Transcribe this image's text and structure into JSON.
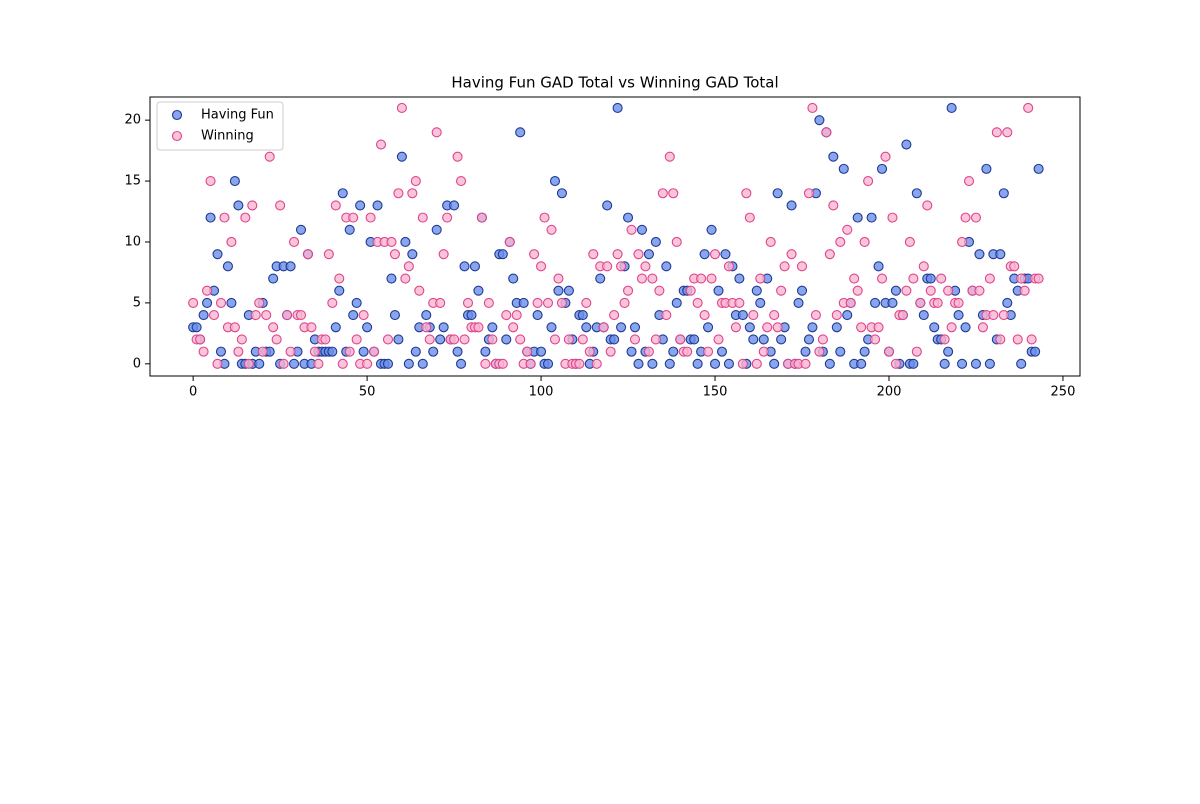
{
  "chart_data": {
    "type": "scatter",
    "title": "Having Fun GAD Total vs Winning GAD Total",
    "x": [
      0,
      1,
      2,
      3,
      4,
      5,
      6,
      7,
      8,
      9,
      10,
      11,
      12,
      13,
      14,
      15,
      16,
      17,
      18,
      19,
      20,
      21,
      22,
      23,
      24,
      25,
      26,
      27,
      28,
      29,
      30,
      31,
      32,
      33,
      34,
      35,
      36,
      37,
      38,
      39,
      40,
      41,
      42,
      43,
      44,
      45,
      46,
      47,
      48,
      49,
      50,
      51,
      52,
      53,
      54,
      55,
      56,
      57,
      58,
      59,
      60,
      61,
      62,
      63,
      64,
      65,
      66,
      67,
      68,
      69,
      70,
      71,
      72,
      73,
      74,
      75,
      76,
      77,
      78,
      79,
      80,
      81,
      82,
      83,
      84,
      85,
      86,
      87,
      88,
      89,
      90,
      91,
      92,
      93,
      94,
      95,
      96,
      97,
      98,
      99,
      100,
      101,
      102,
      103,
      104,
      105,
      106,
      107,
      108,
      109,
      110,
      111,
      112,
      113,
      114,
      115,
      116,
      117,
      118,
      119,
      120,
      121,
      122,
      123,
      124,
      125,
      126,
      127,
      128,
      129,
      130,
      131,
      132,
      133,
      134,
      135,
      136,
      137,
      138,
      139,
      140,
      141,
      142,
      143,
      144,
      145,
      146,
      147,
      148,
      149,
      150,
      151,
      152,
      153,
      154,
      155,
      156,
      157,
      158,
      159,
      160,
      161,
      162,
      163,
      164,
      165,
      166,
      167,
      168,
      169,
      170,
      171,
      172,
      173,
      174,
      175,
      176,
      177,
      178,
      179,
      180,
      181,
      182,
      183,
      184,
      185,
      186,
      187,
      188,
      189,
      190,
      191,
      192,
      193,
      194,
      195,
      196,
      197,
      198,
      199,
      200,
      201,
      202,
      203,
      204,
      205,
      206,
      207,
      208,
      209,
      210,
      211,
      212,
      213,
      214,
      215,
      216,
      217,
      218,
      219,
      220,
      221,
      222,
      223,
      224,
      225,
      226,
      227,
      228,
      229,
      230,
      231,
      232,
      233,
      234,
      235,
      236,
      237,
      238,
      239,
      240,
      241,
      242,
      243
    ],
    "series": [
      {
        "name": "Having Fun",
        "color": "#6b8ee8",
        "edge": "#1f3a93",
        "values": [
          3,
          3,
          2,
          4,
          5,
          12,
          6,
          9,
          1,
          0,
          8,
          5,
          15,
          13,
          0,
          0,
          4,
          0,
          1,
          0,
          5,
          1,
          1,
          7,
          8,
          0,
          8,
          4,
          8,
          0,
          1,
          11,
          0,
          9,
          0,
          2,
          1,
          1,
          1,
          1,
          1,
          3,
          6,
          14,
          1,
          11,
          4,
          5,
          13,
          1,
          3,
          10,
          1,
          13,
          0,
          0,
          0,
          7,
          4,
          2,
          17,
          10,
          0,
          9,
          1,
          3,
          0,
          4,
          3,
          1,
          11,
          2,
          3,
          13,
          2,
          13,
          1,
          0,
          8,
          4,
          4,
          8,
          6,
          12,
          1,
          2,
          3,
          0,
          9,
          9,
          2,
          10,
          7,
          5,
          19,
          5,
          1,
          0,
          1,
          4,
          1,
          0,
          0,
          3,
          15,
          6,
          14,
          5,
          6,
          2,
          0,
          4,
          4,
          3,
          0,
          1,
          3,
          7,
          3,
          13,
          2,
          2,
          21,
          3,
          8,
          12,
          1,
          3,
          0,
          11,
          1,
          9,
          0,
          10,
          4,
          2,
          8,
          0,
          1,
          5,
          2,
          6,
          6,
          2,
          2,
          0,
          1,
          9,
          3,
          11,
          0,
          6,
          1,
          9,
          0,
          8,
          4,
          7,
          4,
          0,
          3,
          2,
          6,
          5,
          2,
          7,
          1,
          0,
          14,
          2,
          3,
          0,
          13,
          0,
          5,
          6,
          1,
          2,
          3,
          14,
          20,
          1,
          19,
          0,
          17,
          3,
          1,
          16,
          4,
          5,
          0,
          12,
          0,
          1,
          2,
          12,
          5,
          8,
          16,
          5,
          1,
          5,
          6,
          0,
          4,
          18,
          0,
          0,
          14,
          5,
          4,
          7,
          7,
          3,
          2,
          2,
          0,
          1,
          21,
          6,
          4,
          0,
          3,
          10,
          6,
          0,
          9,
          4,
          16,
          0,
          9,
          2,
          9,
          14,
          5,
          4,
          7,
          6,
          0,
          7,
          7,
          1,
          1,
          16
        ]
      },
      {
        "name": "Winning",
        "color": "#f7b6d2",
        "edge": "#e0448c",
        "values": [
          5,
          2,
          2,
          1,
          6,
          15,
          4,
          0,
          5,
          12,
          3,
          10,
          3,
          1,
          2,
          12,
          0,
          13,
          4,
          5,
          1,
          4,
          17,
          3,
          2,
          13,
          0,
          4,
          1,
          10,
          4,
          4,
          3,
          9,
          3,
          1,
          0,
          2,
          2,
          9,
          5,
          13,
          7,
          0,
          12,
          1,
          12,
          2,
          0,
          4,
          0,
          12,
          1,
          10,
          18,
          10,
          2,
          10,
          9,
          14,
          21,
          7,
          8,
          14,
          15,
          6,
          12,
          3,
          2,
          5,
          19,
          5,
          9,
          12,
          2,
          2,
          17,
          15,
          2,
          5,
          3,
          3,
          3,
          12,
          0,
          5,
          2,
          0,
          0,
          0,
          4,
          10,
          3,
          4,
          2,
          0,
          1,
          0,
          9,
          5,
          8,
          12,
          5,
          11,
          2,
          7,
          5,
          0,
          2,
          0,
          0,
          0,
          2,
          5,
          1,
          9,
          0,
          8,
          3,
          8,
          1,
          4,
          9,
          8,
          5,
          6,
          11,
          2,
          9,
          7,
          8,
          1,
          7,
          2,
          6,
          14,
          4,
          17,
          14,
          10,
          2,
          1,
          1,
          6,
          7,
          5,
          7,
          4,
          1,
          7,
          9,
          2,
          5,
          5,
          8,
          5,
          3,
          5,
          0,
          14,
          12,
          4,
          0,
          7,
          1,
          3,
          10,
          4,
          3,
          6,
          8,
          0,
          9,
          0,
          0,
          8,
          0,
          14,
          21,
          4,
          1,
          2,
          19,
          9,
          13,
          4,
          10,
          5,
          11,
          5,
          7,
          6,
          3,
          10,
          15,
          3,
          2,
          3,
          7,
          17,
          1,
          12,
          0,
          4,
          4,
          6,
          10,
          7,
          1,
          5,
          8,
          13,
          6,
          5,
          5,
          7,
          2,
          6,
          3,
          5,
          5,
          10,
          12,
          15,
          6,
          12,
          6,
          3,
          4,
          7,
          4,
          19,
          2,
          4,
          19,
          8,
          8,
          2,
          7,
          6,
          21,
          2,
          7,
          7
        ]
      }
    ],
    "xlim": [
      -12.4,
      254.9
    ],
    "ylim": [
      -1,
      21.9
    ],
    "xticks": [
      0,
      50,
      100,
      150,
      200,
      250
    ],
    "yticks": [
      0,
      5,
      10,
      15,
      20
    ],
    "legend": "upper left"
  }
}
